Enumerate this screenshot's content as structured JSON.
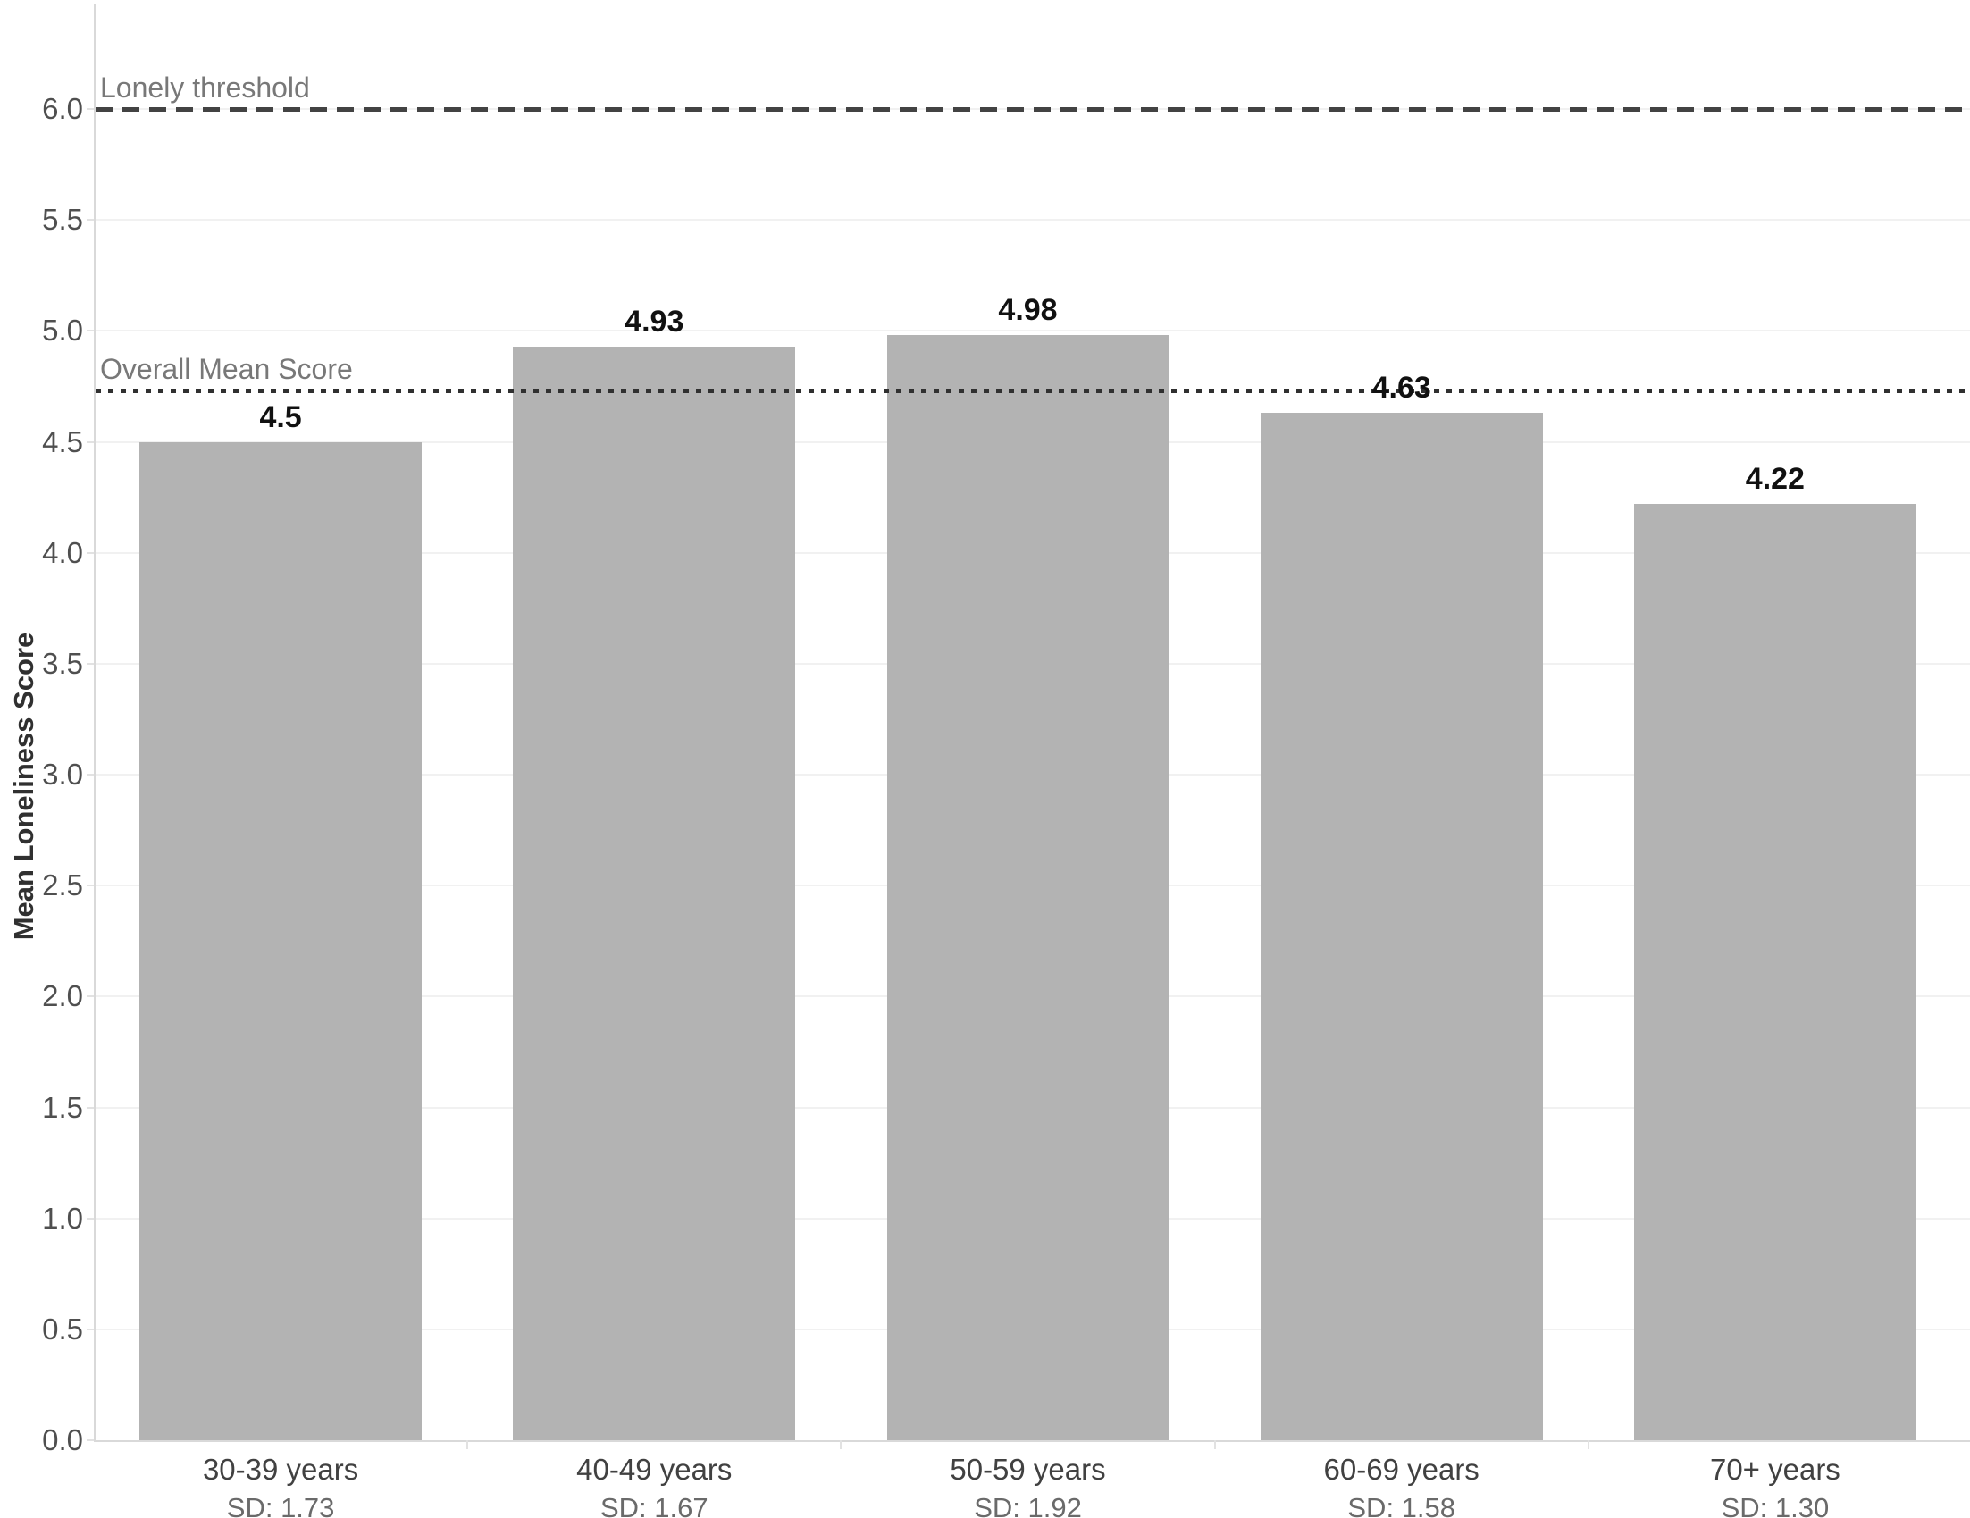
{
  "chart_data": {
    "type": "bar",
    "title": "",
    "xlabel": "",
    "ylabel": "Mean Loneliness Score",
    "categories": [
      "30-39 years",
      "40-49 years",
      "50-59 years",
      "60-69 years",
      "70+ years"
    ],
    "values": [
      4.5,
      4.93,
      4.98,
      4.63,
      4.22
    ],
    "value_labels": [
      "4.5",
      "4.93",
      "4.98",
      "4.63",
      "4.22"
    ],
    "sd_labels": [
      "SD: 1.73",
      "SD: 1.67",
      "SD: 1.92",
      "SD: 1.58",
      "SD: 1.30"
    ],
    "ylim": [
      0,
      6.49
    ],
    "ytick_step": 0.5,
    "ytick_labels": [
      "0.0",
      "0.5",
      "1.0",
      "1.5",
      "2.0",
      "2.5",
      "3.0",
      "3.5",
      "4.0",
      "4.5",
      "5.0",
      "5.5",
      "6.0"
    ],
    "grid": true,
    "legend_position": "none",
    "reference_lines": [
      {
        "id": "lonely-threshold",
        "label": "Lonely threshold",
        "value": 6.0,
        "style": "dashed"
      },
      {
        "id": "overall-mean",
        "label": "Overall Mean Score",
        "value": 4.73,
        "style": "dotted"
      }
    ],
    "bar_color": "#b3b3b3"
  },
  "colors": {
    "bar": "#b3b3b3",
    "gridline": "#f1f1f1",
    "axis": "#d9d9d9",
    "tick_label": "#4f4f4f",
    "category_label": "#414141",
    "sd_label": "#6a6a6a",
    "value_label": "#111111",
    "reference_label": "#787878",
    "reference_dashed": "#434343",
    "reference_dotted": "#303030",
    "background": "#ffffff"
  }
}
